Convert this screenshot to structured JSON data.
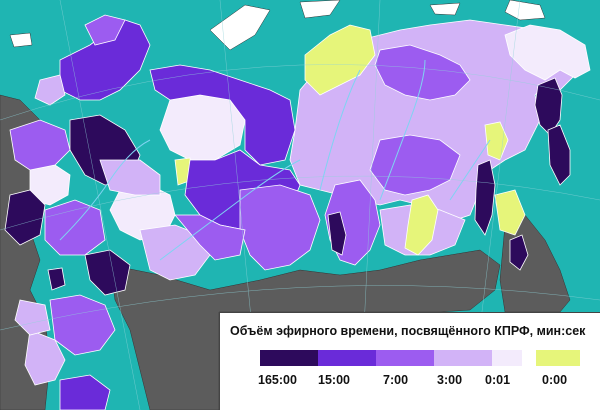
{
  "map": {
    "title": "Объём эфирного времени, посвящённого КПРФ, мин:сек",
    "colors": {
      "sea": "#1fb5b2",
      "foreign_land": "#5c5c5c",
      "border": "#ffffff",
      "river": "#7fd4f2"
    },
    "legend": {
      "bins": [
        {
          "color": "#2d0a5c",
          "label": "165:00"
        },
        {
          "color": "#6a2bd9",
          "label": "15:00"
        },
        {
          "color": "#9c5cf0",
          "label": "7:00"
        },
        {
          "color": "#d2b3f7",
          "label": "3:00"
        },
        {
          "color": "#f3ebfc",
          "label": "0:01"
        },
        {
          "color": "#e6f57a",
          "label": "0:00"
        }
      ]
    }
  }
}
